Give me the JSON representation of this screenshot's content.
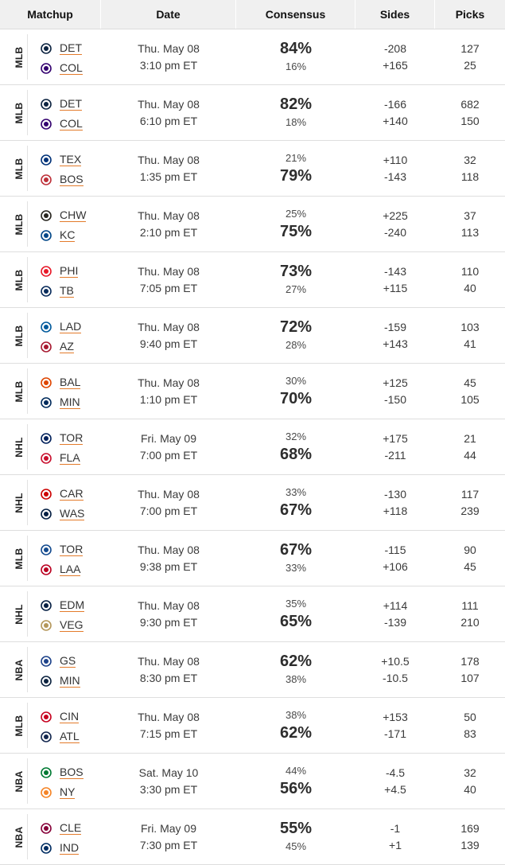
{
  "header": {
    "matchup": "Matchup",
    "date": "Date",
    "consensus": "Consensus",
    "sides": "Sides",
    "picks": "Picks"
  },
  "rows": [
    {
      "league": "MLB",
      "teams": [
        {
          "abbr": "DET",
          "icon": "detroit-tigers-logo",
          "color": "#0c2340"
        },
        {
          "abbr": "COL",
          "icon": "colorado-rockies-logo",
          "color": "#33006f"
        }
      ],
      "date": "Thu. May 08",
      "time": "3:10 pm ET",
      "top": "84%",
      "bottom": "16%",
      "fav": "top",
      "sides": [
        "-208",
        "+165"
      ],
      "picks": [
        "127",
        "25"
      ]
    },
    {
      "league": "MLB",
      "teams": [
        {
          "abbr": "DET",
          "icon": "detroit-tigers-logo",
          "color": "#0c2340"
        },
        {
          "abbr": "COL",
          "icon": "colorado-rockies-logo",
          "color": "#33006f"
        }
      ],
      "date": "Thu. May 08",
      "time": "6:10 pm ET",
      "top": "82%",
      "bottom": "18%",
      "fav": "top",
      "sides": [
        "-166",
        "+140"
      ],
      "picks": [
        "682",
        "150"
      ]
    },
    {
      "league": "MLB",
      "teams": [
        {
          "abbr": "TEX",
          "icon": "texas-rangers-logo",
          "color": "#003278"
        },
        {
          "abbr": "BOS",
          "icon": "boston-red-sox-logo",
          "color": "#bd3039"
        }
      ],
      "date": "Thu. May 08",
      "time": "1:35 pm ET",
      "top": "21%",
      "bottom": "79%",
      "fav": "bottom",
      "sides": [
        "+110",
        "-143"
      ],
      "picks": [
        "32",
        "118"
      ]
    },
    {
      "league": "MLB",
      "teams": [
        {
          "abbr": "CHW",
          "icon": "chicago-white-sox-logo",
          "color": "#27251f"
        },
        {
          "abbr": "KC",
          "icon": "kansas-city-royals-logo",
          "color": "#004687"
        }
      ],
      "date": "Thu. May 08",
      "time": "2:10 pm ET",
      "top": "25%",
      "bottom": "75%",
      "fav": "bottom",
      "sides": [
        "+225",
        "-240"
      ],
      "picks": [
        "37",
        "113"
      ]
    },
    {
      "league": "MLB",
      "teams": [
        {
          "abbr": "PHI",
          "icon": "philadelphia-phillies-logo",
          "color": "#e81828"
        },
        {
          "abbr": "TB",
          "icon": "tampa-bay-rays-logo",
          "color": "#092c5c"
        }
      ],
      "date": "Thu. May 08",
      "time": "7:05 pm ET",
      "top": "73%",
      "bottom": "27%",
      "fav": "top",
      "sides": [
        "-143",
        "+115"
      ],
      "picks": [
        "110",
        "40"
      ]
    },
    {
      "league": "MLB",
      "teams": [
        {
          "abbr": "LAD",
          "icon": "los-angeles-dodgers-logo",
          "color": "#005a9c"
        },
        {
          "abbr": "AZ",
          "icon": "arizona-diamondbacks-logo",
          "color": "#a71930"
        }
      ],
      "date": "Thu. May 08",
      "time": "9:40 pm ET",
      "top": "72%",
      "bottom": "28%",
      "fav": "top",
      "sides": [
        "-159",
        "+143"
      ],
      "picks": [
        "103",
        "41"
      ]
    },
    {
      "league": "MLB",
      "teams": [
        {
          "abbr": "BAL",
          "icon": "baltimore-orioles-logo",
          "color": "#df4601"
        },
        {
          "abbr": "MIN",
          "icon": "minnesota-twins-logo",
          "color": "#002b5c"
        }
      ],
      "date": "Thu. May 08",
      "time": "1:10 pm ET",
      "top": "30%",
      "bottom": "70%",
      "fav": "bottom",
      "sides": [
        "+125",
        "-150"
      ],
      "picks": [
        "45",
        "105"
      ]
    },
    {
      "league": "NHL",
      "teams": [
        {
          "abbr": "TOR",
          "icon": "toronto-maple-leafs-logo",
          "color": "#00205b"
        },
        {
          "abbr": "FLA",
          "icon": "florida-panthers-logo",
          "color": "#c8102e"
        }
      ],
      "date": "Fri. May 09",
      "time": "7:00 pm ET",
      "top": "32%",
      "bottom": "68%",
      "fav": "bottom",
      "sides": [
        "+175",
        "-211"
      ],
      "picks": [
        "21",
        "44"
      ]
    },
    {
      "league": "NHL",
      "teams": [
        {
          "abbr": "CAR",
          "icon": "carolina-hurricanes-logo",
          "color": "#cc0000"
        },
        {
          "abbr": "WAS",
          "icon": "washington-capitals-logo",
          "color": "#041e42"
        }
      ],
      "date": "Thu. May 08",
      "time": "7:00 pm ET",
      "top": "33%",
      "bottom": "67%",
      "fav": "bottom",
      "sides": [
        "-130",
        "+118"
      ],
      "picks": [
        "117",
        "239"
      ]
    },
    {
      "league": "MLB",
      "teams": [
        {
          "abbr": "TOR",
          "icon": "toronto-blue-jays-logo",
          "color": "#134a8e"
        },
        {
          "abbr": "LAA",
          "icon": "los-angeles-angels-logo",
          "color": "#ba0021"
        }
      ],
      "date": "Thu. May 08",
      "time": "9:38 pm ET",
      "top": "67%",
      "bottom": "33%",
      "fav": "top",
      "sides": [
        "-115",
        "+106"
      ],
      "picks": [
        "90",
        "45"
      ]
    },
    {
      "league": "NHL",
      "teams": [
        {
          "abbr": "EDM",
          "icon": "edmonton-oilers-logo",
          "color": "#041e42"
        },
        {
          "abbr": "VEG",
          "icon": "vegas-golden-knights-logo",
          "color": "#b4975a"
        }
      ],
      "date": "Thu. May 08",
      "time": "9:30 pm ET",
      "top": "35%",
      "bottom": "65%",
      "fav": "bottom",
      "sides": [
        "+114",
        "-139"
      ],
      "picks": [
        "111",
        "210"
      ]
    },
    {
      "league": "NBA",
      "teams": [
        {
          "abbr": "GS",
          "icon": "golden-state-warriors-logo",
          "color": "#1d428a"
        },
        {
          "abbr": "MIN",
          "icon": "minnesota-timberwolves-logo",
          "color": "#0c2340"
        }
      ],
      "date": "Thu. May 08",
      "time": "8:30 pm ET",
      "top": "62%",
      "bottom": "38%",
      "fav": "top",
      "sides": [
        "+10.5",
        "-10.5"
      ],
      "picks": [
        "178",
        "107"
      ]
    },
    {
      "league": "MLB",
      "teams": [
        {
          "abbr": "CIN",
          "icon": "cincinnati-reds-logo",
          "color": "#c6011f"
        },
        {
          "abbr": "ATL",
          "icon": "atlanta-braves-logo",
          "color": "#13274f"
        }
      ],
      "date": "Thu. May 08",
      "time": "7:15 pm ET",
      "top": "38%",
      "bottom": "62%",
      "fav": "bottom",
      "sides": [
        "+153",
        "-171"
      ],
      "picks": [
        "50",
        "83"
      ]
    },
    {
      "league": "NBA",
      "teams": [
        {
          "abbr": "BOS",
          "icon": "boston-celtics-logo",
          "color": "#007a33"
        },
        {
          "abbr": "NY",
          "icon": "new-york-knicks-logo",
          "color": "#f58426"
        }
      ],
      "date": "Sat. May 10",
      "time": "3:30 pm ET",
      "top": "44%",
      "bottom": "56%",
      "fav": "bottom",
      "sides": [
        "-4.5",
        "+4.5"
      ],
      "picks": [
        "32",
        "40"
      ]
    },
    {
      "league": "NBA",
      "teams": [
        {
          "abbr": "CLE",
          "icon": "cleveland-cavaliers-logo",
          "color": "#860038"
        },
        {
          "abbr": "IND",
          "icon": "indiana-pacers-logo",
          "color": "#002d62"
        }
      ],
      "date": "Fri. May 09",
      "time": "7:30 pm ET",
      "top": "55%",
      "bottom": "45%",
      "fav": "top",
      "sides": [
        "-1",
        "+1"
      ],
      "picks": [
        "169",
        "139"
      ]
    }
  ]
}
